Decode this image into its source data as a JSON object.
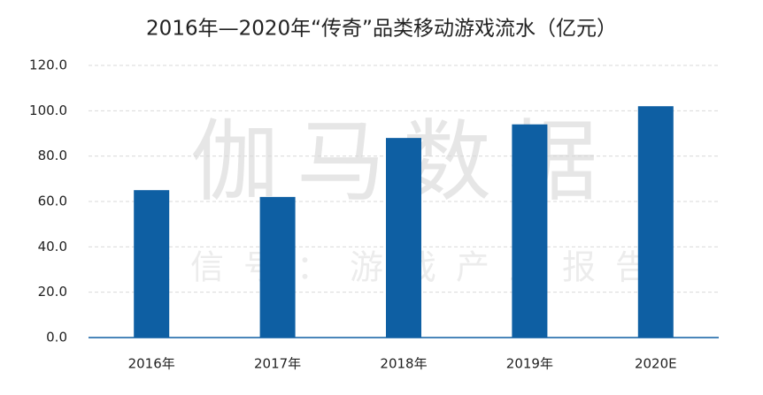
{
  "chart_data": {
    "type": "bar",
    "title": "2016年—2020年“传奇”品类移动游戏流水（亿元）",
    "watermark": "伽马数据",
    "watermark_subtitle": "微信号：游戏产业报告",
    "categories": [
      "2016年",
      "2017年",
      "2018年",
      "2019年",
      "2020E"
    ],
    "values": [
      65,
      62,
      88,
      94,
      102
    ],
    "color": "#0e5fa3",
    "ylim": [
      0,
      120
    ],
    "yticks": [
      {
        "value": 0,
        "label": "0.0"
      },
      {
        "value": 20,
        "label": "20.0"
      },
      {
        "value": 40,
        "label": "40.0"
      },
      {
        "value": 60,
        "label": "60.0"
      },
      {
        "value": 80,
        "label": "80.0"
      },
      {
        "value": 100,
        "label": "100.0"
      },
      {
        "value": 120,
        "label": "120.0"
      }
    ],
    "grid": true
  }
}
